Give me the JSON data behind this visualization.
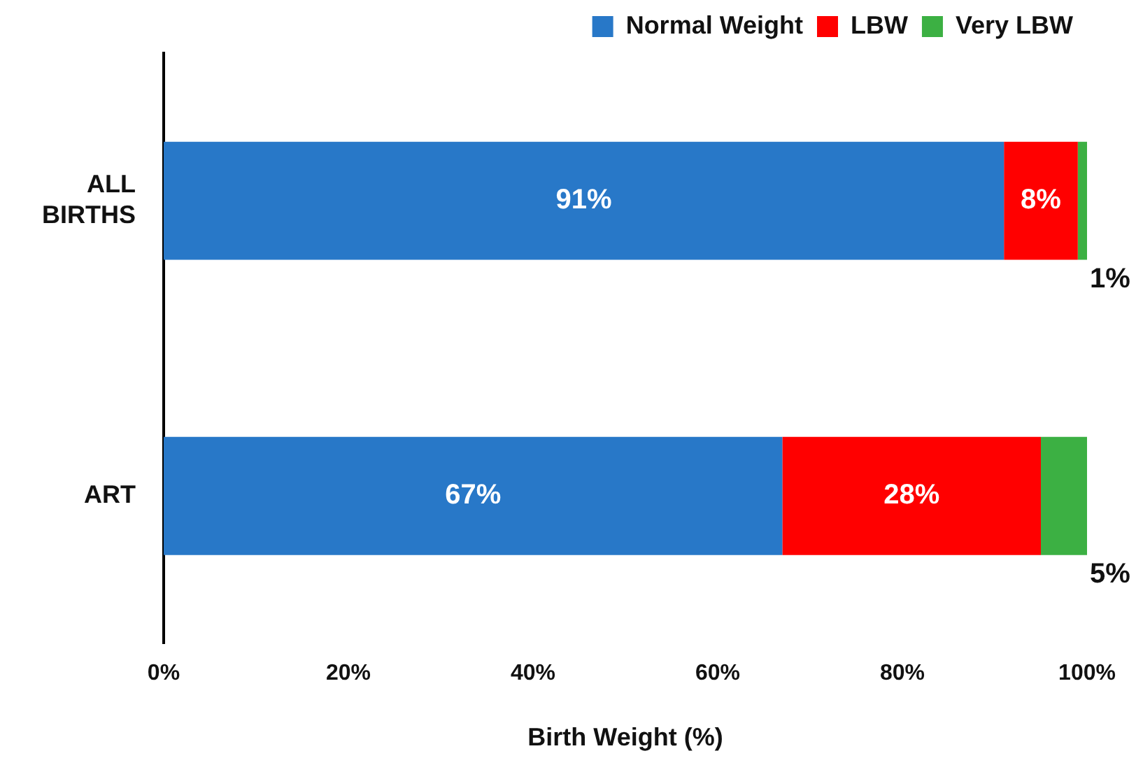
{
  "chart_data": {
    "type": "bar",
    "orientation": "horizontal",
    "stacked": true,
    "categories": [
      "ALL BIRTHS",
      "ART"
    ],
    "series": [
      {
        "name": "Normal Weight",
        "color": "#2878c8",
        "values": [
          91,
          67
        ],
        "value_labels": [
          "91%",
          "67%"
        ]
      },
      {
        "name": "LBW",
        "color": "#ff0000",
        "values": [
          8,
          28
        ],
        "value_labels": [
          "8%",
          "28%"
        ]
      },
      {
        "name": "Very LBW",
        "color": "#3cb043",
        "values": [
          1,
          5
        ],
        "value_labels": [
          "1%",
          "5%"
        ]
      }
    ],
    "xlim": [
      0,
      100
    ],
    "xticks": [
      {
        "value": 0,
        "label": "0%"
      },
      {
        "value": 20,
        "label": "20%"
      },
      {
        "value": 40,
        "label": "40%"
      },
      {
        "value": 60,
        "label": "60%"
      },
      {
        "value": 80,
        "label": "80%"
      },
      {
        "value": 100,
        "label": "100%"
      }
    ],
    "xlabel": "Birth Weight (%)",
    "legend": "top right",
    "grid": false
  }
}
